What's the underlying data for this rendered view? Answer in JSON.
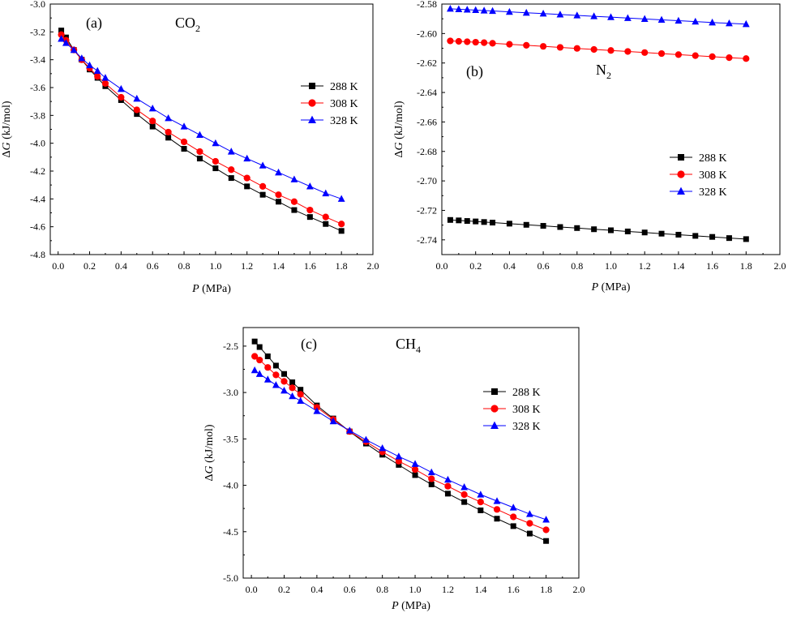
{
  "chart_data": [
    {
      "type": "line",
      "panel_label": "(a)",
      "gas": "CO",
      "gas_subscript": "2",
      "xlabel_italic": "P",
      "xlabel_rest": " (MPa)",
      "ylabel_prefix": "Δ",
      "ylabel_italic": "G",
      "ylabel_rest": " (kJ/mol)",
      "xlim": [
        -0.05,
        2.0
      ],
      "ylim": [
        -4.8,
        -3.0
      ],
      "xticks": [
        0.0,
        0.2,
        0.4,
        0.6,
        0.8,
        1.0,
        1.2,
        1.4,
        1.6,
        1.8,
        2.0
      ],
      "xtick_labels": [
        "0.0",
        "0.2",
        "0.4",
        "0.6",
        "0.8",
        "1.0",
        "1.2",
        "1.4",
        "1.6",
        "1.8",
        "2.0"
      ],
      "yticks": [
        -3.0,
        -3.2,
        -3.4,
        -3.6,
        -3.8,
        -4.0,
        -4.2,
        -4.4,
        -4.6,
        -4.8
      ],
      "ytick_labels": [
        "-3.0",
        "-3.2",
        "-3.4",
        "-3.6",
        "-3.8",
        "-4.0",
        "-4.2",
        "-4.4",
        "-4.6",
        "-4.8"
      ],
      "legend_position": "right-middle",
      "series": [
        {
          "name": "288 K",
          "color": "#000000",
          "marker": "square",
          "x": [
            0.02,
            0.05,
            0.1,
            0.15,
            0.2,
            0.25,
            0.3,
            0.4,
            0.5,
            0.6,
            0.7,
            0.8,
            0.9,
            1.0,
            1.1,
            1.2,
            1.3,
            1.4,
            1.5,
            1.6,
            1.7,
            1.8
          ],
          "y": [
            -3.19,
            -3.24,
            -3.33,
            -3.4,
            -3.47,
            -3.53,
            -3.59,
            -3.69,
            -3.79,
            -3.88,
            -3.96,
            -4.04,
            -4.11,
            -4.18,
            -4.25,
            -4.31,
            -4.37,
            -4.42,
            -4.48,
            -4.53,
            -4.58,
            -4.63
          ]
        },
        {
          "name": "308 K",
          "color": "#ff0000",
          "marker": "circle",
          "x": [
            0.02,
            0.05,
            0.1,
            0.15,
            0.2,
            0.25,
            0.3,
            0.4,
            0.5,
            0.6,
            0.7,
            0.8,
            0.9,
            1.0,
            1.1,
            1.2,
            1.3,
            1.4,
            1.5,
            1.6,
            1.7,
            1.8
          ],
          "y": [
            -3.22,
            -3.26,
            -3.33,
            -3.4,
            -3.46,
            -3.52,
            -3.57,
            -3.67,
            -3.76,
            -3.84,
            -3.92,
            -3.99,
            -4.06,
            -4.13,
            -4.19,
            -4.25,
            -4.31,
            -4.37,
            -4.42,
            -4.48,
            -4.53,
            -4.58
          ]
        },
        {
          "name": "328 K",
          "color": "#0000ff",
          "marker": "triangle",
          "x": [
            0.02,
            0.05,
            0.1,
            0.15,
            0.2,
            0.25,
            0.3,
            0.4,
            0.5,
            0.6,
            0.7,
            0.8,
            0.9,
            1.0,
            1.1,
            1.2,
            1.3,
            1.4,
            1.5,
            1.6,
            1.7,
            1.8
          ],
          "y": [
            -3.25,
            -3.28,
            -3.33,
            -3.39,
            -3.44,
            -3.48,
            -3.53,
            -3.61,
            -3.68,
            -3.75,
            -3.82,
            -3.88,
            -3.94,
            -4.0,
            -4.06,
            -4.11,
            -4.16,
            -4.21,
            -4.26,
            -4.31,
            -4.36,
            -4.4
          ]
        }
      ]
    },
    {
      "type": "line",
      "panel_label": "(b)",
      "gas": "N",
      "gas_subscript": "2",
      "xlabel_italic": "P",
      "xlabel_rest": " (MPa)",
      "ylabel_prefix": "Δ",
      "ylabel_italic": "G",
      "ylabel_rest": " (kJ/mol)",
      "xlim": [
        0.0,
        2.0
      ],
      "ylim": [
        -2.75,
        -2.58
      ],
      "xticks": [
        0.0,
        0.2,
        0.4,
        0.6,
        0.8,
        1.0,
        1.2,
        1.4,
        1.6,
        1.8,
        2.0
      ],
      "xtick_labels": [
        "0.0",
        "0.2",
        "0.4",
        "0.6",
        "0.8",
        "1.0",
        "1.2",
        "1.4",
        "1.6",
        "1.8",
        "2.0"
      ],
      "yticks": [
        -2.58,
        -2.6,
        -2.62,
        -2.64,
        -2.66,
        -2.68,
        -2.7,
        -2.72,
        -2.74
      ],
      "ytick_labels": [
        "-2.58",
        "-2.60",
        "-2.62",
        "-2.64",
        "-2.66",
        "-2.68",
        "-2.70",
        "-2.72",
        "-2.74"
      ],
      "legend_position": "right-middle",
      "series": [
        {
          "name": "288 K",
          "color": "#000000",
          "marker": "square",
          "x": [
            0.05,
            0.1,
            0.15,
            0.2,
            0.25,
            0.3,
            0.4,
            0.5,
            0.6,
            0.7,
            0.8,
            0.9,
            1.0,
            1.1,
            1.2,
            1.3,
            1.4,
            1.5,
            1.6,
            1.7,
            1.8
          ],
          "y": [
            -2.7265,
            -2.7268,
            -2.7272,
            -2.7275,
            -2.7279,
            -2.7283,
            -2.729,
            -2.7298,
            -2.7305,
            -2.7313,
            -2.732,
            -2.7328,
            -2.7335,
            -2.7343,
            -2.735,
            -2.7358,
            -2.7365,
            -2.7373,
            -2.738,
            -2.7388,
            -2.7395
          ]
        },
        {
          "name": "308 K",
          "color": "#ff0000",
          "marker": "circle",
          "x": [
            0.05,
            0.1,
            0.15,
            0.2,
            0.25,
            0.3,
            0.4,
            0.5,
            0.6,
            0.7,
            0.8,
            0.9,
            1.0,
            1.1,
            1.2,
            1.3,
            1.4,
            1.5,
            1.6,
            1.7,
            1.8
          ],
          "y": [
            -2.605,
            -2.6053,
            -2.6056,
            -2.6059,
            -2.6062,
            -2.6066,
            -2.6073,
            -2.608,
            -2.6087,
            -2.6094,
            -2.6101,
            -2.6108,
            -2.6115,
            -2.6122,
            -2.6129,
            -2.6136,
            -2.6143,
            -2.615,
            -2.6157,
            -2.6164,
            -2.617
          ]
        },
        {
          "name": "328 K",
          "color": "#0000ff",
          "marker": "triangle",
          "x": [
            0.05,
            0.1,
            0.15,
            0.2,
            0.25,
            0.3,
            0.4,
            0.5,
            0.6,
            0.7,
            0.8,
            0.9,
            1.0,
            1.1,
            1.2,
            1.3,
            1.4,
            1.5,
            1.6,
            1.7,
            1.8
          ],
          "y": [
            -2.5832,
            -2.5835,
            -2.5838,
            -2.5841,
            -2.5844,
            -2.5847,
            -2.5853,
            -2.5859,
            -2.5865,
            -2.5871,
            -2.5877,
            -2.5883,
            -2.5889,
            -2.5895,
            -2.5901,
            -2.5907,
            -2.5913,
            -2.5919,
            -2.5925,
            -2.5931,
            -2.5936
          ]
        }
      ]
    },
    {
      "type": "line",
      "panel_label": "(c)",
      "gas": "CH",
      "gas_subscript": "4",
      "xlabel_italic": "P",
      "xlabel_rest": " (MPa)",
      "ylabel_prefix": "Δ",
      "ylabel_italic": "G",
      "ylabel_rest": " (kJ/mol)",
      "xlim": [
        -0.05,
        2.0
      ],
      "ylim": [
        -5.0,
        -2.3
      ],
      "xticks": [
        0.0,
        0.2,
        0.4,
        0.6,
        0.8,
        1.0,
        1.2,
        1.4,
        1.6,
        1.8,
        2.0
      ],
      "xtick_labels": [
        "0.0",
        "0.2",
        "0.4",
        "0.6",
        "0.8",
        "1.0",
        "1.2",
        "1.4",
        "1.6",
        "1.8",
        "2.0"
      ],
      "yticks": [
        -2.5,
        -3.0,
        -3.5,
        -4.0,
        -4.5,
        -5.0
      ],
      "ytick_labels": [
        "-2.5",
        "-3.0",
        "-3.5",
        "-4.0",
        "-4.5",
        "-5.0"
      ],
      "legend_position": "right-upper",
      "series": [
        {
          "name": "288 K",
          "color": "#000000",
          "marker": "square",
          "x": [
            0.02,
            0.05,
            0.1,
            0.15,
            0.2,
            0.25,
            0.3,
            0.4,
            0.5,
            0.6,
            0.7,
            0.8,
            0.9,
            1.0,
            1.1,
            1.2,
            1.3,
            1.4,
            1.5,
            1.6,
            1.7,
            1.8
          ],
          "y": [
            -2.45,
            -2.51,
            -2.61,
            -2.71,
            -2.8,
            -2.89,
            -2.97,
            -3.14,
            -3.28,
            -3.42,
            -3.55,
            -3.67,
            -3.78,
            -3.89,
            -3.99,
            -4.09,
            -4.18,
            -4.27,
            -4.36,
            -4.44,
            -4.52,
            -4.6
          ]
        },
        {
          "name": "308 K",
          "color": "#ff0000",
          "marker": "circle",
          "x": [
            0.02,
            0.05,
            0.1,
            0.15,
            0.2,
            0.25,
            0.3,
            0.4,
            0.5,
            0.6,
            0.7,
            0.8,
            0.9,
            1.0,
            1.1,
            1.2,
            1.3,
            1.4,
            1.5,
            1.6,
            1.7,
            1.8
          ],
          "y": [
            -2.61,
            -2.65,
            -2.73,
            -2.81,
            -2.88,
            -2.95,
            -3.02,
            -3.16,
            -3.29,
            -3.42,
            -3.53,
            -3.64,
            -3.74,
            -3.83,
            -3.93,
            -4.01,
            -4.1,
            -4.18,
            -4.26,
            -4.34,
            -4.41,
            -4.48
          ]
        },
        {
          "name": "328 K",
          "color": "#0000ff",
          "marker": "triangle",
          "x": [
            0.02,
            0.05,
            0.1,
            0.15,
            0.2,
            0.25,
            0.3,
            0.4,
            0.5,
            0.6,
            0.7,
            0.8,
            0.9,
            1.0,
            1.1,
            1.2,
            1.3,
            1.4,
            1.5,
            1.6,
            1.7,
            1.8
          ],
          "y": [
            -2.76,
            -2.8,
            -2.86,
            -2.92,
            -2.98,
            -3.04,
            -3.09,
            -3.2,
            -3.31,
            -3.41,
            -3.51,
            -3.6,
            -3.69,
            -3.77,
            -3.86,
            -3.94,
            -4.02,
            -4.1,
            -4.17,
            -4.24,
            -4.31,
            -4.37
          ]
        }
      ]
    }
  ]
}
